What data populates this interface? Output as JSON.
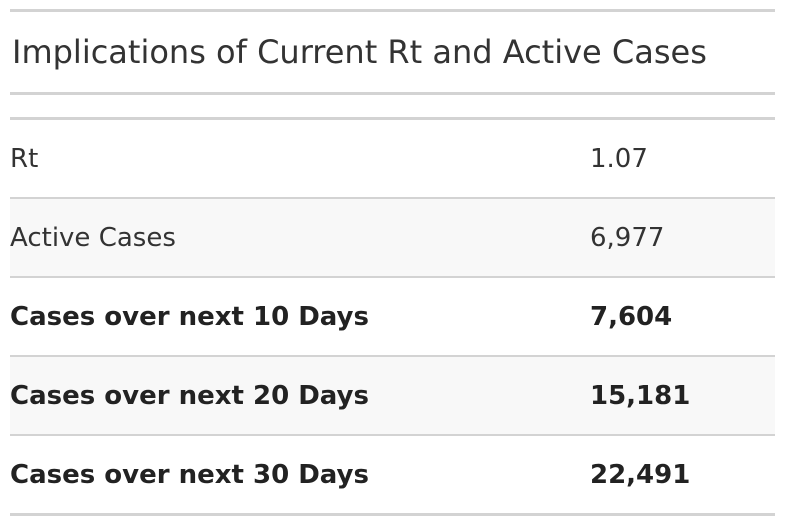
{
  "table": {
    "title": "Implications of Current Rt and Active Cases",
    "rows": [
      {
        "label": "Rt",
        "value": "1.07",
        "bold": false
      },
      {
        "label": "Active Cases",
        "value": "6,977",
        "bold": false
      },
      {
        "label": "Cases over next 10 Days",
        "value": "7,604",
        "bold": true
      },
      {
        "label": "Cases over next 20 Days",
        "value": "15,181",
        "bold": true
      },
      {
        "label": "Cases over next 30 Days",
        "value": "22,491",
        "bold": true
      }
    ]
  },
  "colors": {
    "text": "#333333",
    "rule": "#d3d3d3",
    "stripe": "#f8f8f8"
  }
}
